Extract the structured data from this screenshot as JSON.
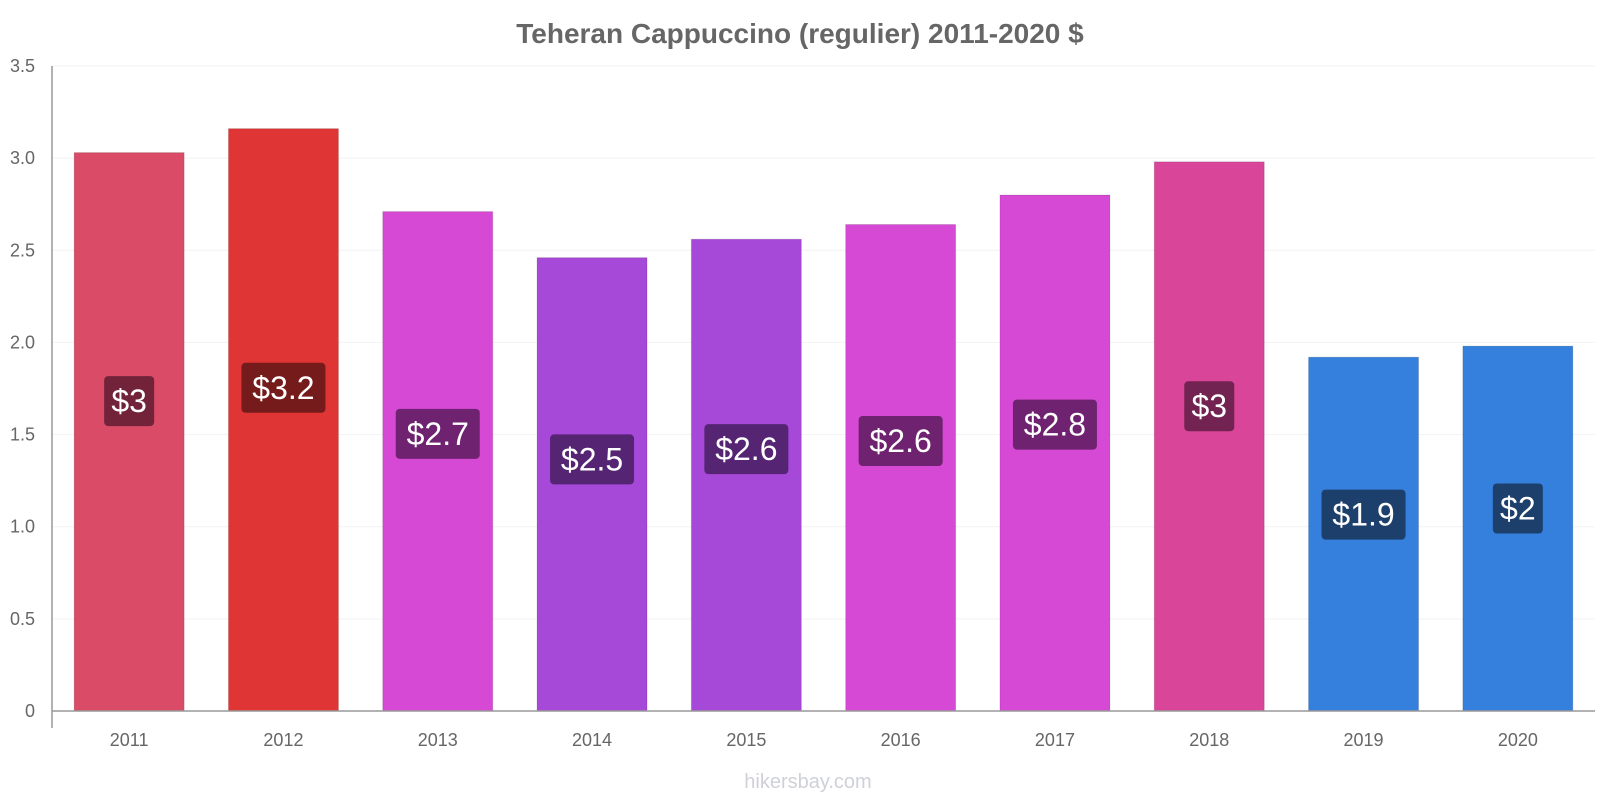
{
  "chart_data": {
    "type": "bar",
    "title": "Teheran Cappuccino (regulier) 2011-2020 $",
    "categories": [
      "2011",
      "2012",
      "2013",
      "2014",
      "2015",
      "2016",
      "2017",
      "2018",
      "2019",
      "2020"
    ],
    "values": [
      3.03,
      3.16,
      2.71,
      2.46,
      2.56,
      2.64,
      2.8,
      2.98,
      1.92,
      1.98
    ],
    "data_labels": [
      "$3",
      "$3.2",
      "$2.7",
      "$2.5",
      "$2.6",
      "$2.6",
      "$2.8",
      "$3",
      "$1.9",
      "$2"
    ],
    "y_ticks": [
      "0",
      "0.5",
      "1.0",
      "1.5",
      "2.0",
      "2.5",
      "3.0",
      "3.5"
    ],
    "ylim": [
      0,
      3.5
    ],
    "grid": true,
    "legend": "none",
    "colors": {
      "bars": [
        "#d94b66",
        "#e03535",
        "#d649d4",
        "#a648d8",
        "#a648d8",
        "#d649d4",
        "#d649d4",
        "#d94599",
        "#3580dd",
        "#3580dd"
      ],
      "label_boxes": [
        "#722339",
        "#761b1b",
        "#6e226f",
        "#552573",
        "#552573",
        "#6e226f",
        "#6e226f",
        "#722351",
        "#1d3f6c",
        "#1d3f6c"
      ],
      "axis": "#999999",
      "grid": "#f2f2f2",
      "text": "#666666"
    }
  },
  "watermark": "hikersbay.com"
}
